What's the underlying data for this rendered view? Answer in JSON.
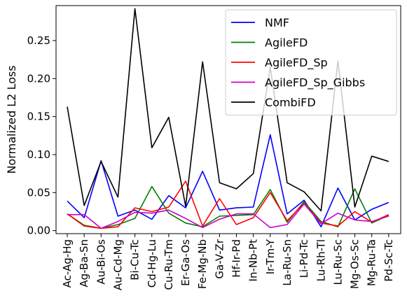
{
  "chart_data": {
    "type": "line",
    "title": "",
    "xlabel": "",
    "ylabel": "Normalized L2 Loss",
    "ylim": [
      -0.004,
      0.296
    ],
    "yticks": [
      "0.00",
      "0.05",
      "0.10",
      "0.15",
      "0.20",
      "0.25"
    ],
    "grid": false,
    "legend_position": "top-right",
    "categories": [
      "Ac-Ag-Hg",
      "Ag-Ba-Sn",
      "Au-Bi-Os",
      "Au-Cd-Mg",
      "Bi-Cu-Tc",
      "Cd-Hg-Lu",
      "Cu-Ru-Tm",
      "Er-Ga-Os",
      "Fe-Mg-Nb",
      "Ga-V-Zr",
      "Hf-Ir-Pd",
      "In-Nb-Pt",
      "Ir-Tm-Y",
      "La-Ru-Sn",
      "Li-Pd-Tc",
      "Lu-Rh-Tl",
      "Lu-Ru-Sc",
      "Mg-Os-Sc",
      "Mg-Ru-Ta",
      "Pd-Sc-Tc"
    ],
    "series": [
      {
        "name": "NMF",
        "color": "#0000ff",
        "values": [
          0.039,
          0.017,
          0.092,
          0.019,
          0.027,
          0.015,
          0.046,
          0.03,
          0.078,
          0.027,
          0.03,
          0.031,
          0.126,
          0.022,
          0.04,
          0.005,
          0.056,
          0.014,
          0.028,
          0.037
        ]
      },
      {
        "name": "AgileFD",
        "color": "#008000",
        "values": [
          0.022,
          0.007,
          0.003,
          0.008,
          0.016,
          0.058,
          0.023,
          0.01,
          0.005,
          0.019,
          0.02,
          0.021,
          0.054,
          0.011,
          0.038,
          0.012,
          0.005,
          0.055,
          0.01,
          0.02
        ]
      },
      {
        "name": "AgileFD_Sp",
        "color": "#ff0000",
        "values": [
          0.022,
          0.006,
          0.003,
          0.005,
          0.03,
          0.025,
          0.031,
          0.065,
          0.006,
          0.042,
          0.008,
          0.017,
          0.05,
          0.013,
          0.036,
          0.01,
          0.006,
          0.025,
          0.011,
          0.021
        ]
      },
      {
        "name": "AgileFD_Sp_Gibbs",
        "color": "#cc00cc",
        "values": [
          0.021,
          0.021,
          0.003,
          0.012,
          0.024,
          0.023,
          0.027,
          0.016,
          0.004,
          0.015,
          0.022,
          0.022,
          0.004,
          0.008,
          0.035,
          0.009,
          0.023,
          0.014,
          0.012,
          0.019
        ]
      },
      {
        "name": "CombiFD",
        "color": "#000000",
        "values": [
          0.163,
          0.033,
          0.091,
          0.044,
          0.292,
          0.109,
          0.149,
          0.032,
          0.222,
          0.063,
          0.055,
          0.075,
          0.215,
          0.063,
          0.051,
          0.026,
          0.223,
          0.031,
          0.098,
          0.091
        ]
      }
    ]
  }
}
